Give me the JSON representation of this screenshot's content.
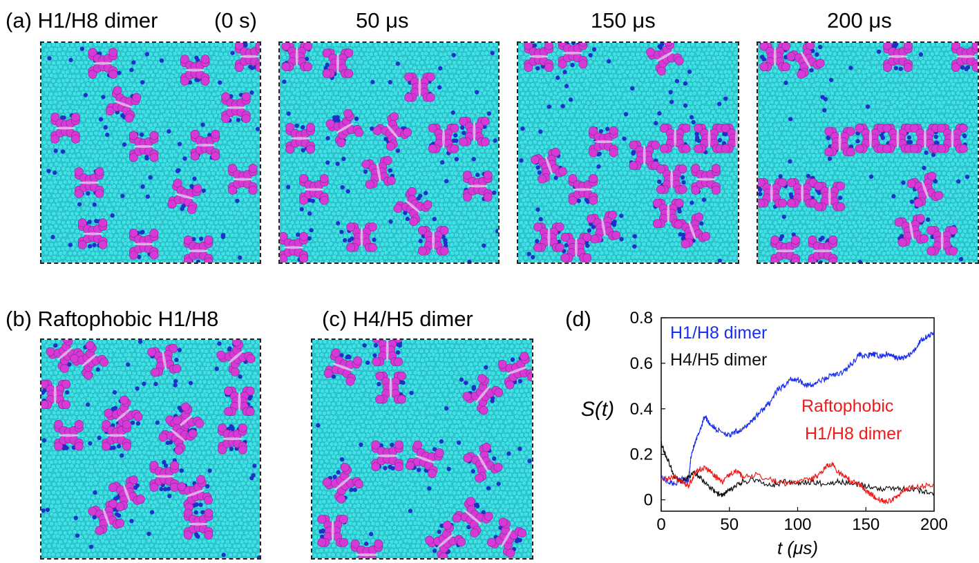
{
  "figure": {
    "panel_a": {
      "label": "(a) H1/H8 dimer",
      "time0": "(0 s)",
      "times": [
        "50 μs",
        "150 μs",
        "200 μs"
      ]
    },
    "panel_b": {
      "label": "(b) Raftophobic H1/H8"
    },
    "panel_c": {
      "label": "(c) H4/H5 dimer"
    },
    "panel_d": {
      "label": "(d)"
    },
    "colors": {
      "lipid": "#3fe0e6",
      "protein": "#d63ad6",
      "cholesterol": "#1f2fc9",
      "blue_series": "#1a2ef0",
      "black_series": "#111111",
      "red_series": "#f01a1a"
    }
  },
  "chart_data": {
    "type": "line",
    "xlabel": "t (μs)",
    "ylabel": "S(t)",
    "xlim": [
      0,
      200
    ],
    "ylim": [
      -0.05,
      0.8
    ],
    "xticks": [
      "0",
      "50",
      "100",
      "150",
      "200"
    ],
    "yticks": [
      "0",
      "0.2",
      "0.4",
      "0.6",
      "0.8"
    ],
    "annotations": [
      "H1/H8 dimer",
      "H4/H5 dimer",
      "Raftophobic",
      "H1/H8 dimer"
    ],
    "series": [
      {
        "name": "H1/H8 dimer",
        "color": "#1a2ef0",
        "x": [
          0,
          5,
          10,
          15,
          20,
          22,
          25,
          28,
          32,
          35,
          40,
          45,
          50,
          55,
          60,
          65,
          70,
          75,
          80,
          85,
          90,
          95,
          100,
          105,
          110,
          115,
          120,
          125,
          130,
          135,
          140,
          145,
          150,
          155,
          160,
          165,
          170,
          175,
          180,
          185,
          190,
          195,
          200
        ],
        "y": [
          0.1,
          0.08,
          0.07,
          0.1,
          0.08,
          0.2,
          0.25,
          0.3,
          0.37,
          0.34,
          0.31,
          0.3,
          0.28,
          0.3,
          0.31,
          0.34,
          0.37,
          0.4,
          0.43,
          0.48,
          0.5,
          0.53,
          0.53,
          0.51,
          0.5,
          0.52,
          0.53,
          0.55,
          0.55,
          0.57,
          0.6,
          0.64,
          0.63,
          0.64,
          0.63,
          0.64,
          0.63,
          0.62,
          0.63,
          0.65,
          0.7,
          0.72,
          0.73
        ]
      },
      {
        "name": "H4/H5 dimer",
        "color": "#111111",
        "x": [
          0,
          3,
          6,
          10,
          15,
          20,
          25,
          30,
          35,
          40,
          45,
          50,
          55,
          60,
          70,
          80,
          90,
          100,
          110,
          120,
          130,
          140,
          150,
          160,
          170,
          180,
          190,
          200
        ],
        "y": [
          0.25,
          0.2,
          0.16,
          0.1,
          0.08,
          0.1,
          0.12,
          0.09,
          0.06,
          0.03,
          0.02,
          0.04,
          0.06,
          0.08,
          0.09,
          0.06,
          0.08,
          0.07,
          0.08,
          0.07,
          0.08,
          0.07,
          0.06,
          0.05,
          0.05,
          0.05,
          0.04,
          0.03
        ]
      },
      {
        "name": "Raftophobic H1/H8 dimer",
        "color": "#f01a1a",
        "x": [
          0,
          5,
          10,
          15,
          20,
          25,
          30,
          35,
          40,
          45,
          50,
          55,
          60,
          70,
          80,
          90,
          100,
          110,
          115,
          120,
          125,
          130,
          135,
          140,
          145,
          150,
          155,
          160,
          165,
          170,
          175,
          180,
          190,
          200
        ],
        "y": [
          0.1,
          0.09,
          0.1,
          0.08,
          0.06,
          0.12,
          0.14,
          0.13,
          0.1,
          0.08,
          0.11,
          0.13,
          0.1,
          0.11,
          0.09,
          0.07,
          0.08,
          0.09,
          0.11,
          0.14,
          0.16,
          0.12,
          0.1,
          0.08,
          0.07,
          0.04,
          0.02,
          0.0,
          -0.01,
          0.0,
          0.03,
          0.05,
          0.06,
          0.07
        ]
      }
    ]
  }
}
